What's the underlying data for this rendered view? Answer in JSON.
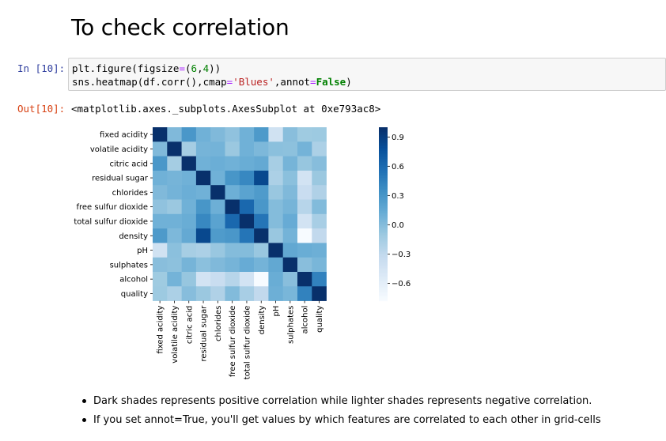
{
  "heading": "To check correlation",
  "cells": {
    "in_prompt": "In [10]:",
    "out_prompt": "Out[10]:",
    "code_lines": [
      "plt.figure(figsize=(6,4))",
      "sns.heatmap(df.corr(),cmap='Blues',annot=False)"
    ],
    "output_text": "<matplotlib.axes._subplots.AxesSubplot at 0xe793ac8>"
  },
  "chart_data": {
    "type": "heatmap",
    "cmap": "Blues",
    "rows": [
      "fixed acidity",
      "volatile acidity",
      "citric acid",
      "residual sugar",
      "chlorides",
      "free sulfur dioxide",
      "total sulfur dioxide",
      "density",
      "pH",
      "sulphates",
      "alcohol",
      "quality"
    ],
    "cols": [
      "fixed acidity",
      "volatile acidity",
      "citric acid",
      "residual sugar",
      "chlorides",
      "free sulfur dioxide",
      "total sulfur dioxide",
      "density",
      "pH",
      "sulphates",
      "alcohol",
      "quality"
    ],
    "values": [
      [
        1.0,
        0.02,
        0.29,
        0.09,
        0.02,
        -0.05,
        0.09,
        0.27,
        -0.43,
        -0.02,
        -0.12,
        -0.11
      ],
      [
        0.02,
        1.0,
        -0.15,
        0.06,
        0.07,
        -0.1,
        0.09,
        0.03,
        -0.03,
        -0.04,
        0.07,
        -0.19
      ],
      [
        0.29,
        -0.15,
        1.0,
        0.09,
        0.11,
        0.09,
        0.12,
        0.15,
        -0.16,
        0.06,
        -0.08,
        -0.01
      ],
      [
        0.09,
        0.06,
        0.09,
        1.0,
        0.09,
        0.3,
        0.4,
        0.84,
        -0.19,
        -0.03,
        -0.45,
        -0.1
      ],
      [
        0.02,
        0.07,
        0.11,
        0.09,
        1.0,
        0.1,
        0.2,
        0.26,
        -0.09,
        0.02,
        -0.36,
        -0.21
      ],
      [
        -0.05,
        -0.1,
        0.09,
        0.3,
        0.1,
        1.0,
        0.62,
        0.29,
        0.0,
        0.06,
        -0.25,
        0.01
      ],
      [
        0.09,
        0.09,
        0.12,
        0.4,
        0.2,
        0.62,
        1.0,
        0.53,
        0.0,
        0.13,
        -0.45,
        -0.17
      ],
      [
        0.27,
        0.03,
        0.15,
        0.84,
        0.26,
        0.29,
        0.53,
        1.0,
        -0.09,
        0.07,
        -0.78,
        -0.31
      ],
      [
        -0.43,
        -0.03,
        -0.16,
        -0.19,
        -0.09,
        0.0,
        0.0,
        -0.09,
        1.0,
        0.16,
        0.12,
        0.1
      ],
      [
        -0.02,
        -0.04,
        0.06,
        -0.03,
        0.02,
        0.06,
        0.13,
        0.07,
        0.16,
        1.0,
        -0.02,
        0.05
      ],
      [
        -0.12,
        0.07,
        -0.08,
        -0.45,
        -0.36,
        -0.25,
        -0.45,
        -0.78,
        0.12,
        -0.02,
        1.0,
        0.44
      ],
      [
        -0.11,
        -0.19,
        -0.01,
        -0.1,
        -0.21,
        0.01,
        -0.17,
        -0.31,
        0.1,
        0.05,
        0.44,
        1.0
      ]
    ],
    "vmin": -0.78,
    "vmax": 1.0,
    "colorbar_ticks": [
      0.9,
      0.6,
      0.3,
      0.0,
      -0.3,
      -0.6
    ],
    "colorbar_tick_labels": [
      "0.9",
      "0.6",
      "0.3",
      "0.0",
      "−0.3",
      "−0.6"
    ],
    "annot": false
  },
  "bullets": [
    "Dark shades represents positive correlation while lighter shades represents negative correlation.",
    "If you set annot=True, you'll get values by which features are correlated to each other in grid-cells"
  ]
}
